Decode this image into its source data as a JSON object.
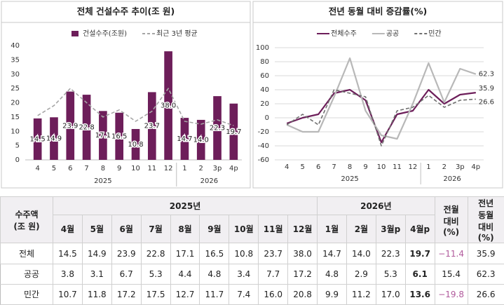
{
  "chart_data": [
    {
      "type": "bar",
      "title": "전체 건설수주 추이(조 원)",
      "category_groups": [
        {
          "label": "2025",
          "categories": [
            "4",
            "5",
            "6",
            "7",
            "8",
            "9",
            "10",
            "11",
            "12"
          ]
        },
        {
          "label": "2026",
          "categories": [
            "1",
            "2",
            "3p",
            "4p"
          ]
        }
      ],
      "series": [
        {
          "name": "건설수주(조원)",
          "type": "bar",
          "color": "#6d1e5a",
          "values": [
            14.5,
            14.9,
            23.9,
            22.8,
            17.1,
            16.5,
            10.8,
            23.7,
            38.0,
            14.7,
            14.0,
            22.3,
            19.7
          ],
          "value_labels": [
            "14.5",
            "14.9",
            "23.9",
            "22.8",
            "17.1",
            "16.5",
            "10.8",
            "23.7",
            "38.0",
            "14.7",
            "14.0",
            "22.3",
            "19.7"
          ]
        },
        {
          "name": "최근 3년 평균",
          "type": "line",
          "dashed": true,
          "color": "#a6a6a6",
          "values": [
            15.5,
            19,
            25,
            20,
            15,
            17.5,
            13.5,
            17,
            25,
            13.5,
            12.5,
            14,
            12
          ]
        }
      ],
      "ylim": [
        0,
        40
      ],
      "yticks": [
        0,
        5,
        10,
        15,
        20,
        25,
        30,
        35,
        40
      ],
      "grid": false
    },
    {
      "type": "line",
      "title": "전년 동월 대비 증감률(%)",
      "category_groups": [
        {
          "label": "2025",
          "categories": [
            "4",
            "5",
            "6",
            "7",
            "8",
            "9",
            "10",
            "11",
            "12"
          ]
        },
        {
          "label": "2026",
          "categories": [
            "1",
            "2",
            "3p",
            "4p"
          ]
        }
      ],
      "series": [
        {
          "name": "전체수주",
          "color": "#6d1e5a",
          "dashed": false,
          "values": [
            -8,
            0,
            5,
            35,
            40,
            25,
            -35,
            5,
            10,
            40,
            20,
            33,
            35.9
          ]
        },
        {
          "name": "공공",
          "color": "#b8b8b8",
          "dashed": false,
          "values": [
            -10,
            -20,
            -20,
            30,
            85,
            10,
            -25,
            -30,
            20,
            78,
            22,
            70,
            62.3
          ]
        },
        {
          "name": "민간",
          "color": "#707070",
          "dashed": true,
          "values": [
            -10,
            5,
            -10,
            40,
            35,
            30,
            -40,
            10,
            15,
            32,
            15,
            25,
            26.6
          ]
        }
      ],
      "ylim": [
        -60,
        100
      ],
      "yticks": [
        -60,
        -40,
        -20,
        0,
        20,
        40,
        60,
        80,
        100
      ],
      "grid": true,
      "end_labels": true
    }
  ],
  "table": {
    "corner": "수주액\n(조 원)",
    "groups": [
      {
        "label": "2025년",
        "columns": [
          "4월",
          "5월",
          "6월",
          "7월",
          "8월",
          "9월",
          "10월",
          "11월",
          "12월"
        ]
      },
      {
        "label": "2026년",
        "columns": [
          "1월",
          "2월",
          "3월p",
          "4월p"
        ]
      }
    ],
    "extra_columns": [
      "전월\n대비\n(%)",
      "전년\n동월\n대비\n(%)"
    ],
    "rows": [
      {
        "label": "전체",
        "cells": [
          "14.5",
          "14.9",
          "23.9",
          "22.8",
          "17.1",
          "16.5",
          "10.8",
          "23.7",
          "38.0",
          "14.7",
          "14.0",
          "22.3",
          "19.7",
          "−11.4",
          "35.9"
        ]
      },
      {
        "label": "공공",
        "cells": [
          "3.8",
          "3.1",
          "6.7",
          "5.3",
          "4.4",
          "4.8",
          "3.4",
          "7.7",
          "17.2",
          "4.8",
          "2.9",
          "5.3",
          "6.1",
          "15.4",
          "62.3"
        ]
      },
      {
        "label": "민간",
        "cells": [
          "10.7",
          "11.8",
          "17.2",
          "17.5",
          "12.7",
          "11.7",
          "7.4",
          "16.0",
          "20.8",
          "9.9",
          "11.2",
          "17.0",
          "13.6",
          "−19.8",
          "26.6"
        ]
      }
    ]
  }
}
